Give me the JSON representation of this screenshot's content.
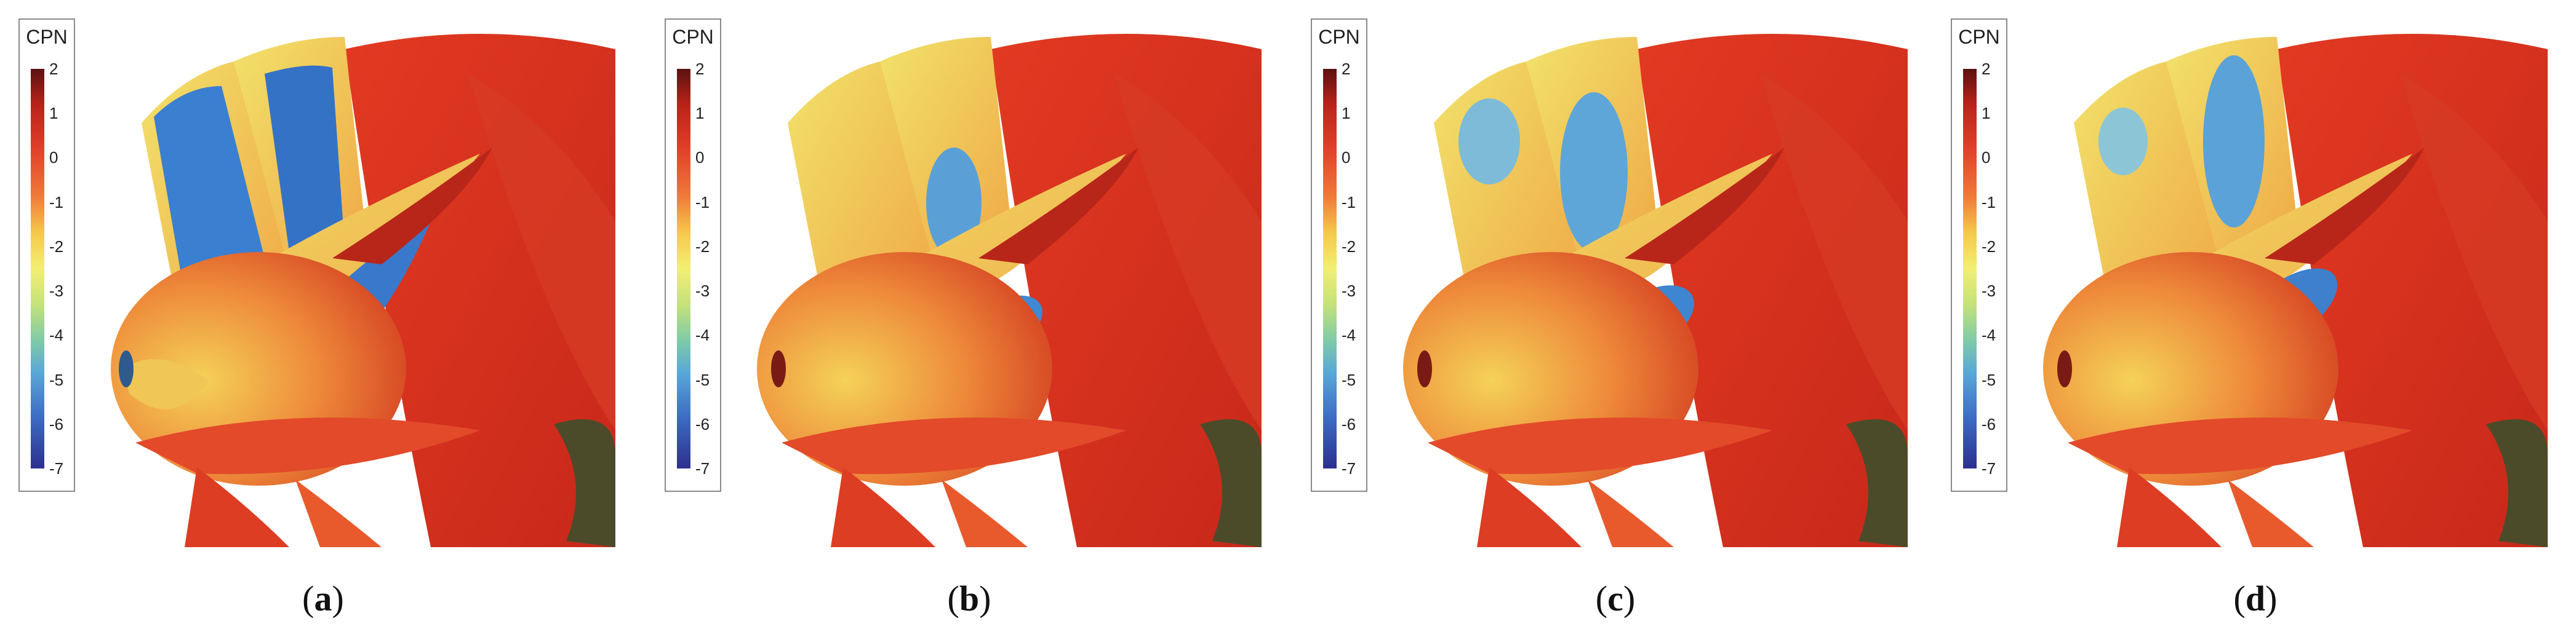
{
  "legend": {
    "title": "CPN",
    "ticks": [
      "2",
      "1",
      "0",
      "-1",
      "-2",
      "-3",
      "-4",
      "-5",
      "-6",
      "-7"
    ]
  },
  "panels": [
    {
      "label": "a",
      "open": "(",
      "close": ")"
    },
    {
      "label": "b",
      "open": "(",
      "close": ")"
    },
    {
      "label": "c",
      "open": "(",
      "close": ")"
    },
    {
      "label": "d",
      "open": "(",
      "close": ")"
    }
  ]
}
